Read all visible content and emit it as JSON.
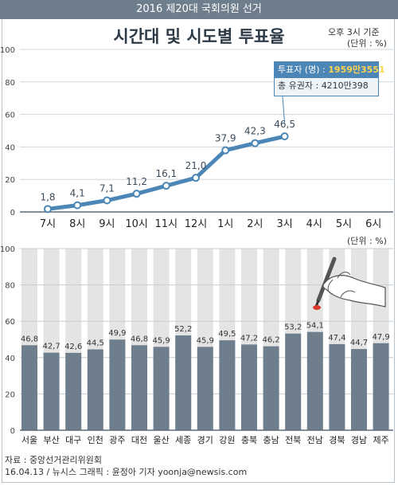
{
  "header": {
    "banner": "2016 제20대 국회의원 선거",
    "title": "시간대 및 시도별 투표율",
    "time_note": "오후 3시 기준",
    "unit_top": "(단위 : %)",
    "unit_bottom": "(단위 : %)"
  },
  "infobox": {
    "voters_label": "투표자 (명) : ",
    "voters_value": "1959만3551",
    "total_label": "총 유권자 : ",
    "total_value": "4210만398"
  },
  "footer": {
    "source": "자료 : 중앙선거관리위원회",
    "credit": "16.04.13 / 뉴시스 그래픽 : 윤정아 기자 yoonja@newsis.com"
  },
  "colors": {
    "line": "#4b86b6",
    "bar": "#6e7e8d",
    "band": "#e4e4e4",
    "point_fill": "#ffffff"
  },
  "chart_data": [
    {
      "type": "line",
      "title": "시간대별 투표율",
      "ylim": [
        0,
        100
      ],
      "yticks": [
        0,
        20,
        40,
        60,
        80,
        100
      ],
      "categories": [
        "7시",
        "8시",
        "9시",
        "10시",
        "11시",
        "12시",
        "1시",
        "2시",
        "3시",
        "4시",
        "5시",
        "6시"
      ],
      "values": [
        1.8,
        4.1,
        7.1,
        11.2,
        16.1,
        21.0,
        37.9,
        42.3,
        46.5,
        null,
        null,
        null
      ],
      "labels": [
        "1,8",
        "4,1",
        "7,1",
        "11,2",
        "16,1",
        "21,0",
        "37,9",
        "42,3",
        "46,5"
      ],
      "grid": true
    },
    {
      "type": "bar",
      "title": "시도별 투표율",
      "ylim": [
        0,
        100
      ],
      "yticks": [
        0,
        20,
        40,
        60,
        80,
        100
      ],
      "categories": [
        "서울",
        "부산",
        "대구",
        "인천",
        "광주",
        "대전",
        "울산",
        "세종",
        "경기",
        "강원",
        "충북",
        "충남",
        "전북",
        "전남",
        "경북",
        "경남",
        "제주"
      ],
      "values": [
        46.8,
        42.7,
        42.6,
        44.5,
        49.9,
        46.8,
        45.9,
        52.2,
        45.9,
        49.5,
        47.2,
        46.2,
        53.2,
        54.1,
        47.4,
        44.7,
        47.9
      ],
      "labels": [
        "46,8",
        "42,7",
        "42,6",
        "44,5",
        "49,9",
        "46,8",
        "45,9",
        "52,2",
        "45,9",
        "49,5",
        "47,2",
        "46,2",
        "53,2",
        "54,1",
        "47,4",
        "44,7",
        "47,9"
      ],
      "grid": true
    }
  ]
}
